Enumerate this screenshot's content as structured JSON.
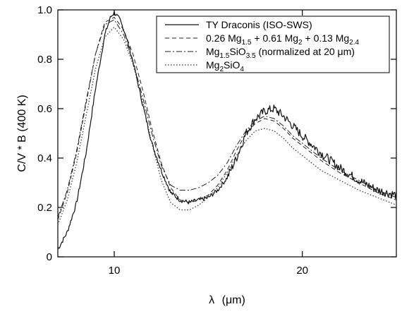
{
  "chart_data": {
    "type": "line",
    "xlabel_symbol": "λ",
    "xlabel_unit": "(μm)",
    "ylabel": "C/V * B (400 K)",
    "xlim": [
      7,
      25
    ],
    "ylim": [
      0,
      1.0
    ],
    "x_ticks": [
      10,
      20
    ],
    "x_tick_labels": [
      "10",
      "20"
    ],
    "y_ticks": [
      0,
      0.2,
      0.4,
      0.6,
      0.8,
      1.0
    ],
    "y_tick_labels": [
      "0",
      "0.2",
      "0.4",
      "0.6",
      "0.8",
      "1.0"
    ],
    "grid": false,
    "legend_position": "top-right",
    "series": [
      {
        "name": "TY Draconis (ISO-SWS)",
        "style": "solid",
        "noisy": true,
        "x": [
          7.0,
          7.5,
          8.0,
          8.5,
          9.0,
          9.5,
          9.8,
          10.0,
          10.3,
          10.6,
          11.0,
          11.5,
          12.0,
          12.5,
          13.0,
          13.5,
          14.0,
          14.5,
          15.0,
          15.5,
          16.0,
          16.5,
          17.0,
          17.5,
          18.0,
          18.5,
          19.0,
          19.5,
          20.0,
          21.0,
          22.0,
          23.0,
          24.0,
          25.0
        ],
        "y": [
          0.03,
          0.1,
          0.22,
          0.42,
          0.68,
          0.9,
          0.97,
          0.99,
          0.96,
          0.9,
          0.79,
          0.62,
          0.46,
          0.35,
          0.26,
          0.23,
          0.22,
          0.23,
          0.24,
          0.27,
          0.32,
          0.4,
          0.5,
          0.56,
          0.59,
          0.6,
          0.57,
          0.53,
          0.49,
          0.42,
          0.36,
          0.31,
          0.27,
          0.25
        ]
      },
      {
        "name": "0.26 Mg1.5 + 0.61 Mg2 + 0.13 Mg2.4",
        "style": "dashed",
        "x": [
          7.0,
          7.5,
          8.0,
          8.5,
          9.0,
          9.5,
          10.0,
          10.5,
          11.0,
          11.5,
          12.0,
          12.5,
          13.0,
          13.5,
          14.0,
          14.5,
          15.0,
          15.5,
          16.0,
          16.5,
          17.0,
          17.5,
          18.0,
          18.5,
          19.0,
          19.5,
          20.0,
          21.0,
          22.0,
          23.0,
          24.0,
          25.0
        ],
        "y": [
          0.15,
          0.26,
          0.42,
          0.62,
          0.82,
          0.95,
          0.97,
          0.92,
          0.82,
          0.68,
          0.52,
          0.38,
          0.28,
          0.23,
          0.22,
          0.23,
          0.25,
          0.29,
          0.35,
          0.43,
          0.5,
          0.54,
          0.56,
          0.55,
          0.52,
          0.48,
          0.45,
          0.39,
          0.34,
          0.3,
          0.26,
          0.23
        ]
      },
      {
        "name": "Mg1.5SiO3.5 (normalized at 20 μm)",
        "style": "dashdot",
        "x": [
          7.0,
          7.5,
          8.0,
          8.5,
          9.0,
          9.5,
          10.0,
          10.5,
          11.0,
          11.5,
          12.0,
          12.5,
          13.0,
          13.5,
          14.0,
          14.5,
          15.0,
          15.5,
          16.0,
          16.5,
          17.0,
          17.5,
          18.0,
          18.5,
          19.0,
          19.5,
          20.0,
          21.0,
          22.0,
          23.0,
          24.0,
          25.0
        ],
        "y": [
          0.16,
          0.27,
          0.43,
          0.63,
          0.82,
          0.94,
          0.96,
          0.9,
          0.79,
          0.65,
          0.5,
          0.37,
          0.29,
          0.27,
          0.27,
          0.28,
          0.3,
          0.33,
          0.38,
          0.45,
          0.51,
          0.55,
          0.57,
          0.56,
          0.53,
          0.49,
          0.46,
          0.4,
          0.35,
          0.31,
          0.27,
          0.24
        ]
      },
      {
        "name": "Mg2SiO4",
        "style": "dotted",
        "x": [
          7.0,
          7.5,
          8.0,
          8.5,
          9.0,
          9.5,
          10.0,
          10.5,
          11.0,
          11.5,
          12.0,
          12.5,
          13.0,
          13.5,
          14.0,
          14.5,
          15.0,
          15.5,
          16.0,
          16.5,
          17.0,
          17.5,
          18.0,
          18.5,
          19.0,
          19.5,
          20.0,
          21.0,
          22.0,
          23.0,
          24.0,
          25.0
        ],
        "y": [
          0.13,
          0.23,
          0.38,
          0.57,
          0.76,
          0.89,
          0.93,
          0.88,
          0.78,
          0.63,
          0.46,
          0.31,
          0.22,
          0.19,
          0.19,
          0.21,
          0.24,
          0.28,
          0.34,
          0.41,
          0.47,
          0.51,
          0.52,
          0.51,
          0.48,
          0.44,
          0.41,
          0.35,
          0.31,
          0.27,
          0.24,
          0.21
        ]
      }
    ],
    "legend": [
      {
        "parts": [
          [
            "TY Draconis (ISO-SWS)",
            false
          ]
        ]
      },
      {
        "parts": [
          [
            "0.26 Mg",
            false
          ],
          [
            "1.5",
            true
          ],
          [
            " + 0.61 Mg",
            false
          ],
          [
            "2",
            true
          ],
          [
            " + 0.13 Mg",
            false
          ],
          [
            "2.4",
            true
          ]
        ]
      },
      {
        "parts": [
          [
            "Mg",
            false
          ],
          [
            "1.5",
            true
          ],
          [
            "SiO",
            false
          ],
          [
            "3.5",
            true
          ],
          [
            " (normalized at 20 μm)",
            false
          ]
        ]
      },
      {
        "parts": [
          [
            "Mg",
            false
          ],
          [
            "2",
            true
          ],
          [
            "SiO",
            false
          ],
          [
            "4",
            true
          ]
        ]
      }
    ]
  }
}
